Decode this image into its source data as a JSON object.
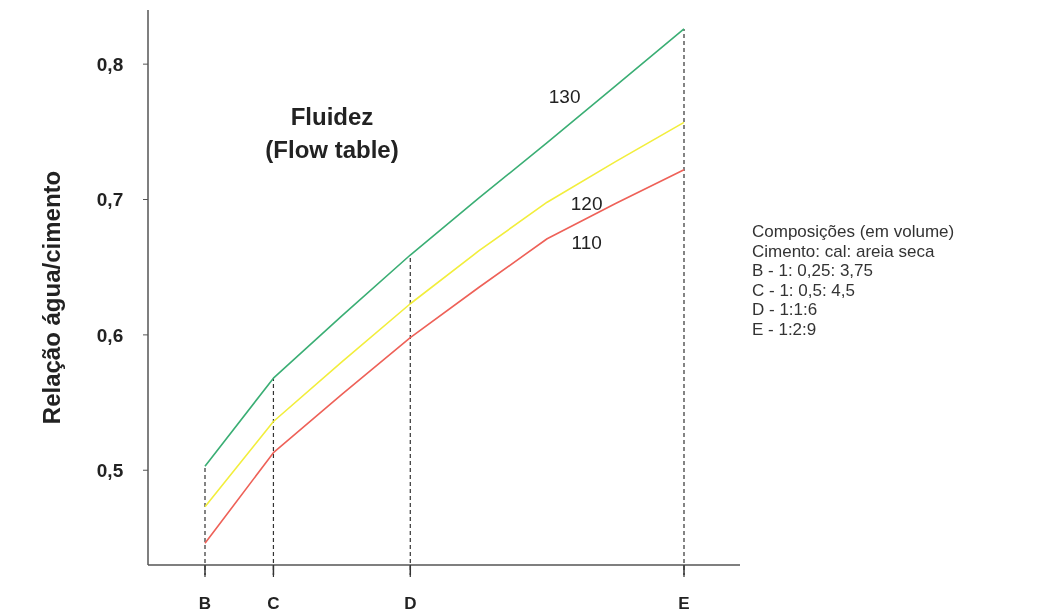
{
  "chart_data": {
    "type": "line",
    "title": "Fluidez\n(Flow table)",
    "ylabel": "Relação água/cimento",
    "categories": [
      "B",
      "C",
      null,
      "D",
      null,
      null,
      null,
      "E"
    ],
    "ylim": [
      0.43,
      0.84
    ],
    "yticks": [
      {
        "value": 0.5,
        "label": "0,5"
      },
      {
        "value": 0.6,
        "label": "0,6"
      },
      {
        "value": 0.7,
        "label": "0,7"
      },
      {
        "value": 0.8,
        "label": "0,8"
      }
    ],
    "series": [
      {
        "name": "130",
        "color": "#3aae74",
        "values": [
          0.503,
          0.568,
          0.614,
          0.659,
          0.701,
          0.742,
          0.784,
          0.826
        ]
      },
      {
        "name": "120",
        "color": "#f2ee3c",
        "values": [
          0.473,
          0.536,
          0.58,
          0.623,
          0.662,
          0.698,
          0.728,
          0.757
        ]
      },
      {
        "name": "110",
        "color": "#ee6158",
        "values": [
          0.446,
          0.513,
          0.556,
          0.598,
          0.635,
          0.671,
          0.697,
          0.722
        ]
      }
    ],
    "ref_lines": [
      {
        "axis": "x",
        "value": "B",
        "line_style": "dashed"
      },
      {
        "axis": "x",
        "value": "C",
        "line_style": "dashed"
      },
      {
        "axis": "x",
        "value": "D",
        "line_style": "dashed"
      },
      {
        "axis": "x",
        "value": "E",
        "line_style": "dashed"
      }
    ],
    "annotations": [
      "Composições (em volume)",
      "Cimento: cal: areia seca",
      "B - 1: 0,25: 3,75",
      "C - 1: 0,5: 4,5",
      "D - 1:1:6",
      "E - 1:2:9"
    ],
    "marker": "none",
    "line_style": "solid",
    "grid": false
  }
}
